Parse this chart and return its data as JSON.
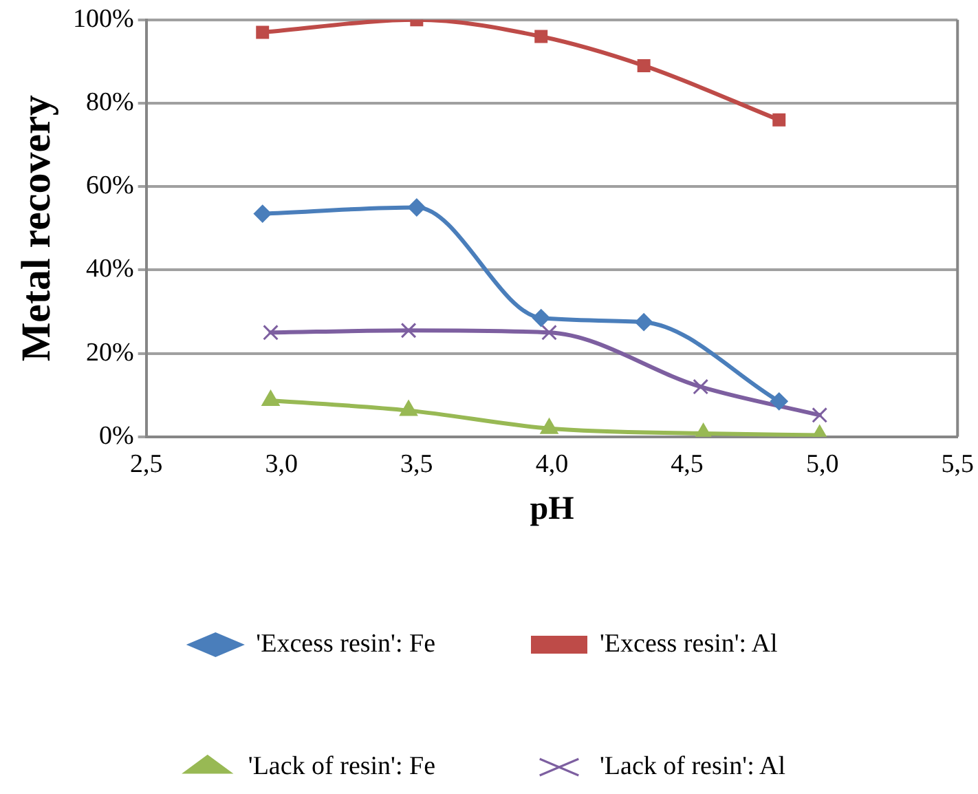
{
  "chart_data": {
    "type": "line",
    "xlabel": "pH",
    "ylabel": "Metal recovery",
    "xlim": [
      2.5,
      5.5
    ],
    "xticks": [
      {
        "value": 2.5,
        "label": "2,5"
      },
      {
        "value": 3,
        "label": "3,0"
      },
      {
        "value": 3.5,
        "label": "3,5"
      },
      {
        "value": 4,
        "label": "4,0"
      },
      {
        "value": 4.5,
        "label": "4,5"
      },
      {
        "value": 5,
        "label": "5,0"
      },
      {
        "value": 5.5,
        "label": "5,5"
      }
    ],
    "ylim": [
      0,
      100
    ],
    "yticks": [
      {
        "value": 0,
        "label": "0%"
      },
      {
        "value": 20,
        "label": "20%"
      },
      {
        "value": 40,
        "label": "40%"
      },
      {
        "value": 60,
        "label": "60%"
      },
      {
        "value": 80,
        "label": "80%"
      },
      {
        "value": 100,
        "label": "100%"
      }
    ],
    "grid": "y",
    "legend": "bottom",
    "series": [
      {
        "name": "'Excess resin': Fe",
        "color": "#4a7ebb",
        "marker": "diamond",
        "x": [
          2.93,
          3.5,
          3.96,
          4.34,
          4.84
        ],
        "values": [
          53.5,
          55,
          28.5,
          27.5,
          8.5
        ]
      },
      {
        "name": "'Excess resin': Al",
        "color": "#be4b48",
        "marker": "square",
        "x": [
          2.93,
          3.5,
          3.96,
          4.34,
          4.84
        ],
        "values": [
          97,
          100,
          96,
          89,
          76
        ]
      },
      {
        "name": "'Lack of resin': Fe",
        "color": "#98b954",
        "marker": "triangle",
        "x": [
          2.96,
          3.47,
          3.99,
          4.56,
          4.99
        ],
        "values": [
          8.7,
          6.3,
          2,
          0.8,
          0.4
        ]
      },
      {
        "name": "'Lack of resin': Al",
        "color": "#7d5fa0",
        "marker": "cross",
        "x": [
          2.96,
          3.47,
          3.99,
          4.55,
          4.99
        ],
        "values": [
          25,
          25.5,
          25,
          12,
          5.2
        ]
      }
    ]
  }
}
